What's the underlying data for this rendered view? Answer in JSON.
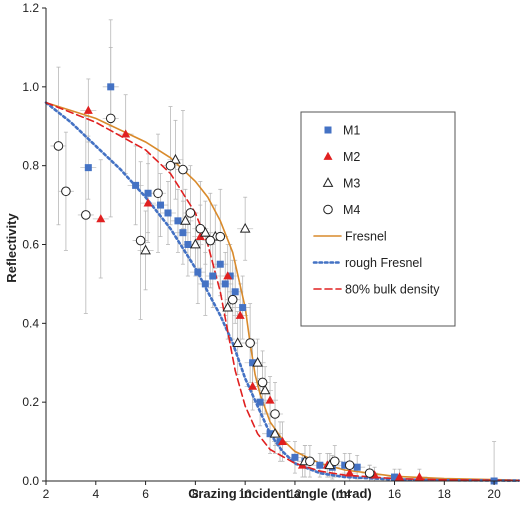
{
  "chart_data": {
    "type": "scatter",
    "title": "",
    "xlabel": "Grazing incident angle (mrad)",
    "ylabel": "Reflectivity",
    "xlim": [
      2,
      21
    ],
    "ylim": [
      0,
      1.2
    ],
    "x_ticks": [
      "2",
      "4",
      "6",
      "8",
      "10",
      "12",
      "14",
      "16",
      "18",
      "20"
    ],
    "y_ticks": [
      "0.0",
      "0.2",
      "0.4",
      "0.6",
      "0.8",
      "1.0",
      "1.2"
    ],
    "grid": false,
    "legend_position": "right",
    "series": [
      {
        "name": "M1",
        "kind": "points",
        "marker": "square",
        "color": "#4472C4",
        "points": [
          {
            "x": 3.7,
            "y": 0.795,
            "e": 0.08
          },
          {
            "x": 4.6,
            "y": 1.0,
            "e": 0.1
          },
          {
            "x": 5.6,
            "y": 0.75,
            "e": 0.1
          },
          {
            "x": 6.1,
            "y": 0.73,
            "e": 0.1
          },
          {
            "x": 6.6,
            "y": 0.7,
            "e": 0.08
          },
          {
            "x": 6.9,
            "y": 0.68,
            "e": 0.08
          },
          {
            "x": 7.3,
            "y": 0.66,
            "e": 0.08
          },
          {
            "x": 7.5,
            "y": 0.63,
            "e": 0.08
          },
          {
            "x": 7.7,
            "y": 0.6,
            "e": 0.08
          },
          {
            "x": 8.1,
            "y": 0.53,
            "e": 0.08
          },
          {
            "x": 8.4,
            "y": 0.5,
            "e": 0.08
          },
          {
            "x": 8.7,
            "y": 0.52,
            "e": 0.08
          },
          {
            "x": 9.0,
            "y": 0.55,
            "e": 0.08
          },
          {
            "x": 9.2,
            "y": 0.5,
            "e": 0.08
          },
          {
            "x": 9.4,
            "y": 0.52,
            "e": 0.08
          },
          {
            "x": 9.6,
            "y": 0.48,
            "e": 0.08
          },
          {
            "x": 9.9,
            "y": 0.44,
            "e": 0.08
          },
          {
            "x": 10.3,
            "y": 0.3,
            "e": 0.06
          },
          {
            "x": 10.6,
            "y": 0.2,
            "e": 0.06
          },
          {
            "x": 11.0,
            "y": 0.12,
            "e": 0.05
          },
          {
            "x": 11.4,
            "y": 0.1,
            "e": 0.05
          },
          {
            "x": 12.0,
            "y": 0.06,
            "e": 0.04
          },
          {
            "x": 12.4,
            "y": 0.05,
            "e": 0.04
          },
          {
            "x": 13.0,
            "y": 0.04,
            "e": 0.03
          },
          {
            "x": 13.5,
            "y": 0.035,
            "e": 0.03
          },
          {
            "x": 14.0,
            "y": 0.04,
            "e": 0.03
          },
          {
            "x": 14.5,
            "y": 0.035,
            "e": 0.03
          },
          {
            "x": 15.0,
            "y": 0.02,
            "e": 0.02
          },
          {
            "x": 16.0,
            "y": 0.01,
            "e": 0.02
          },
          {
            "x": 20.0,
            "y": 0.0,
            "e": 0.1
          }
        ]
      },
      {
        "name": "M2",
        "kind": "points",
        "marker": "triangle",
        "color": "#E02020",
        "points": [
          {
            "x": 3.7,
            "y": 0.94,
            "e": 0.08
          },
          {
            "x": 4.2,
            "y": 0.665,
            "e": 0.15
          },
          {
            "x": 5.2,
            "y": 0.88,
            "e": 0.1
          },
          {
            "x": 6.1,
            "y": 0.705,
            "e": 0.1
          },
          {
            "x": 8.2,
            "y": 0.62,
            "e": 0.08
          },
          {
            "x": 9.3,
            "y": 0.52,
            "e": 0.08
          },
          {
            "x": 9.8,
            "y": 0.42,
            "e": 0.08
          },
          {
            "x": 10.3,
            "y": 0.24,
            "e": 0.06
          },
          {
            "x": 11.0,
            "y": 0.205,
            "e": 0.06
          },
          {
            "x": 11.5,
            "y": 0.1,
            "e": 0.05
          },
          {
            "x": 12.3,
            "y": 0.04,
            "e": 0.03
          },
          {
            "x": 13.3,
            "y": 0.04,
            "e": 0.03
          },
          {
            "x": 14.2,
            "y": 0.02,
            "e": 0.02
          },
          {
            "x": 15.2,
            "y": 0.015,
            "e": 0.02
          },
          {
            "x": 16.2,
            "y": 0.01,
            "e": 0.02
          },
          {
            "x": 17.0,
            "y": 0.01,
            "e": 0.02
          }
        ]
      },
      {
        "name": "M3",
        "kind": "points",
        "marker": "open-triangle",
        "color": "#222222",
        "points": [
          {
            "x": 6.0,
            "y": 0.585,
            "e": 0.1
          },
          {
            "x": 7.2,
            "y": 0.815,
            "e": 0.1
          },
          {
            "x": 7.6,
            "y": 0.66,
            "e": 0.08
          },
          {
            "x": 8.0,
            "y": 0.6,
            "e": 0.08
          },
          {
            "x": 8.4,
            "y": 0.63,
            "e": 0.08
          },
          {
            "x": 8.8,
            "y": 0.62,
            "e": 0.08
          },
          {
            "x": 9.3,
            "y": 0.44,
            "e": 0.08
          },
          {
            "x": 9.7,
            "y": 0.35,
            "e": 0.08
          },
          {
            "x": 10.0,
            "y": 0.64,
            "e": 0.08
          },
          {
            "x": 10.5,
            "y": 0.3,
            "e": 0.06
          },
          {
            "x": 10.8,
            "y": 0.23,
            "e": 0.06
          },
          {
            "x": 11.2,
            "y": 0.12,
            "e": 0.05
          },
          {
            "x": 12.4,
            "y": 0.05,
            "e": 0.04
          },
          {
            "x": 13.4,
            "y": 0.04,
            "e": 0.03
          }
        ]
      },
      {
        "name": "M4",
        "kind": "points",
        "marker": "open-circle",
        "color": "#222222",
        "points": [
          {
            "x": 2.5,
            "y": 0.85,
            "e": 0.2
          },
          {
            "x": 2.8,
            "y": 0.735,
            "e": 0.15
          },
          {
            "x": 3.6,
            "y": 0.675,
            "e": 0.25
          },
          {
            "x": 4.6,
            "y": 0.92,
            "e": 0.25
          },
          {
            "x": 5.8,
            "y": 0.61,
            "e": 0.2
          },
          {
            "x": 6.5,
            "y": 0.73,
            "e": 0.15
          },
          {
            "x": 7.0,
            "y": 0.8,
            "e": 0.15
          },
          {
            "x": 7.5,
            "y": 0.79,
            "e": 0.15
          },
          {
            "x": 7.8,
            "y": 0.68,
            "e": 0.12
          },
          {
            "x": 8.2,
            "y": 0.64,
            "e": 0.12
          },
          {
            "x": 8.6,
            "y": 0.61,
            "e": 0.12
          },
          {
            "x": 9.0,
            "y": 0.62,
            "e": 0.12
          },
          {
            "x": 9.5,
            "y": 0.46,
            "e": 0.1
          },
          {
            "x": 10.2,
            "y": 0.35,
            "e": 0.1
          },
          {
            "x": 10.7,
            "y": 0.25,
            "e": 0.08
          },
          {
            "x": 11.2,
            "y": 0.17,
            "e": 0.08
          },
          {
            "x": 12.6,
            "y": 0.05,
            "e": 0.04
          },
          {
            "x": 13.6,
            "y": 0.05,
            "e": 0.04
          },
          {
            "x": 14.2,
            "y": 0.04,
            "e": 0.03
          },
          {
            "x": 15.0,
            "y": 0.02,
            "e": 0.02
          }
        ]
      },
      {
        "name": "Fresnel",
        "kind": "line",
        "dash": "solid",
        "color": "#D98A2B",
        "x": [
          2,
          4,
          6,
          7,
          8,
          8.5,
          9,
          9.5,
          10,
          10.2,
          10.4,
          10.6,
          11,
          11.5,
          12,
          13,
          14,
          16,
          18,
          21
        ],
        "y": [
          0.96,
          0.92,
          0.86,
          0.82,
          0.76,
          0.72,
          0.66,
          0.58,
          0.44,
          0.35,
          0.27,
          0.22,
          0.15,
          0.105,
          0.075,
          0.045,
          0.028,
          0.012,
          0.006,
          0.002
        ]
      },
      {
        "name": "rough Fresnel",
        "kind": "line",
        "dash": "dotted",
        "color": "#4472C4",
        "x": [
          2,
          3,
          4,
          5,
          6,
          7,
          8,
          8.5,
          9,
          9.5,
          10,
          10.5,
          11,
          11.5,
          12,
          13,
          14,
          16,
          18,
          21
        ],
        "y": [
          0.96,
          0.91,
          0.85,
          0.79,
          0.72,
          0.64,
          0.54,
          0.48,
          0.42,
          0.35,
          0.26,
          0.19,
          0.12,
          0.075,
          0.045,
          0.02,
          0.01,
          0.004,
          0.002,
          0.001
        ]
      },
      {
        "name": "80% bulk density",
        "kind": "line",
        "dash": "dashed",
        "color": "#E02020",
        "x": [
          2,
          4,
          6,
          7,
          8,
          8.5,
          9,
          9.3,
          9.6,
          10,
          10.5,
          11,
          12,
          13,
          14,
          16,
          18,
          21
        ],
        "y": [
          0.96,
          0.91,
          0.84,
          0.78,
          0.68,
          0.6,
          0.48,
          0.38,
          0.28,
          0.19,
          0.12,
          0.08,
          0.045,
          0.025,
          0.015,
          0.006,
          0.003,
          0.001
        ]
      }
    ]
  }
}
